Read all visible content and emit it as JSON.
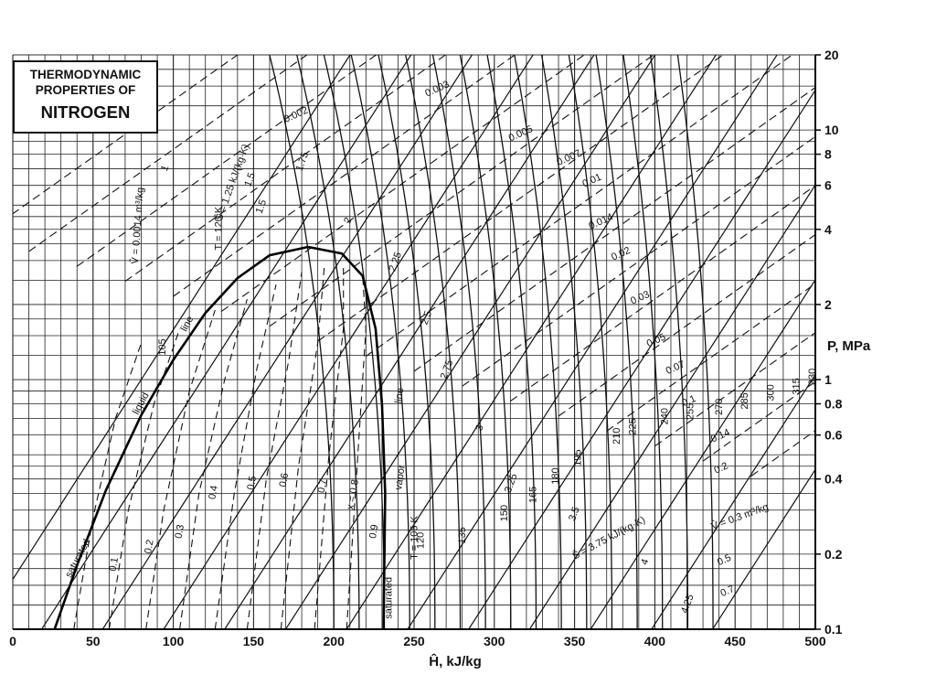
{
  "title_box": {
    "line1": "THERMODYNAMIC",
    "line2": "PROPERTIES OF",
    "line3": "NITROGEN"
  },
  "chart_data": {
    "type": "line",
    "title": "THERMODYNAMIC PROPERTIES OF NITROGEN",
    "xlabel": "Ĥ, kJ/kg",
    "ylabel": "P, MPa",
    "xlim": [
      0,
      500
    ],
    "ylim": [
      0.1,
      20
    ],
    "yscale": "log",
    "grid": true,
    "x_ticks": [
      0,
      50,
      100,
      150,
      200,
      250,
      300,
      350,
      400,
      450,
      500
    ],
    "y_ticks": [
      0.1,
      0.2,
      0.4,
      0.6,
      0.8,
      1,
      2,
      4,
      6,
      8,
      10,
      20
    ],
    "y_tick_labels": [
      "0.1",
      "0.2",
      "0.4",
      "0.6",
      "0.8",
      "1",
      "2",
      "4",
      "6",
      "8",
      "10",
      "20"
    ],
    "dome": {
      "critical_point": [
        184,
        3.4
      ],
      "liquid_curve": [
        [
          26,
          0.1
        ],
        [
          40,
          0.18
        ],
        [
          58,
          0.36
        ],
        [
          80,
          0.72
        ],
        [
          100,
          1.2
        ],
        [
          120,
          1.85
        ],
        [
          140,
          2.55
        ],
        [
          160,
          3.15
        ],
        [
          184,
          3.4
        ]
      ],
      "vapor_curve": [
        [
          184,
          3.4
        ],
        [
          205,
          3.2
        ],
        [
          218,
          2.6
        ],
        [
          226,
          1.6
        ],
        [
          230,
          0.8
        ],
        [
          232,
          0.35
        ],
        [
          231,
          0.1
        ]
      ],
      "labels": {
        "saturated_liquid_1": "saturated",
        "saturated_liquid_2": "liquid",
        "saturated_liquid_3": "line",
        "saturated_vapor_1": "saturated",
        "saturated_vapor_2": "vapor",
        "saturated_vapor_3": "line"
      }
    },
    "quality_lines": {
      "values": [
        "0.1",
        "0.2",
        "0.3",
        "0.4",
        "0.5",
        "0.6",
        "0.7",
        "x = 0.8",
        "0.9"
      ],
      "points": [
        [
          [
            38,
            0.1
          ],
          [
            50,
            0.28
          ],
          [
            64,
            0.7
          ],
          [
            80,
            1.4
          ]
        ],
        [
          [
            60,
            0.1
          ],
          [
            72,
            0.3
          ],
          [
            88,
            0.8
          ],
          [
            104,
            1.6
          ]
        ],
        [
          [
            83,
            0.1
          ],
          [
            94,
            0.3
          ],
          [
            110,
            0.9
          ],
          [
            126,
            1.9
          ]
        ],
        [
          [
            104,
            0.1
          ],
          [
            116,
            0.35
          ],
          [
            132,
            1.0
          ],
          [
            146,
            2.1
          ]
        ],
        [
          [
            126,
            0.1
          ],
          [
            138,
            0.35
          ],
          [
            152,
            1.1
          ],
          [
            164,
            2.4
          ]
        ],
        [
          [
            146,
            0.1
          ],
          [
            158,
            0.4
          ],
          [
            172,
            1.2
          ],
          [
            180,
            2.7
          ]
        ],
        [
          [
            167,
            0.1
          ],
          [
            178,
            0.45
          ],
          [
            190,
            1.4
          ],
          [
            194,
            2.8
          ]
        ],
        [
          [
            188,
            0.1
          ],
          [
            197,
            0.5
          ],
          [
            206,
            1.6
          ],
          [
            206,
            2.8
          ]
        ],
        [
          [
            208,
            0.1
          ],
          [
            215,
            0.5
          ],
          [
            220,
            1.6
          ],
          [
            218,
            2.6
          ]
        ]
      ]
    },
    "isotherms": {
      "unit": "K",
      "labels": [
        "T = 105 K",
        "T = 120 K",
        "105",
        "120",
        "135",
        "150",
        "165",
        "180",
        "195",
        "210",
        "225",
        "240",
        "255",
        "270",
        "285",
        "300",
        "315",
        "330"
      ],
      "values_K": [
        105,
        120,
        105,
        120,
        135,
        150,
        165,
        180,
        195,
        210,
        225,
        240,
        255,
        270,
        285,
        300,
        315,
        330
      ]
    },
    "isentropes": {
      "unit": "kJ/(kg·K)",
      "labels": [
        "Ŝ = 1.25 kJ/(kg·K)",
        "1.5",
        "1.75",
        "2",
        "2.25",
        "2.5",
        "2.75",
        "3",
        "3.25",
        "3.5",
        "Ŝ = 3.75 kJ/(kg·K)",
        "4",
        "4.25"
      ]
    },
    "isochores": {
      "unit": "m³/kg",
      "labels": [
        "V̂ = 0.0014 m³/kg",
        "0.002",
        "0.003",
        "0.005",
        "0.007",
        "0.01",
        "0.014",
        "0.02",
        "0.03",
        "0.05",
        "0.07",
        "0.1",
        "0.14",
        "0.2",
        "V̂ = 0.3 m³/kg",
        "0.5",
        "0.7"
      ]
    },
    "x_tick_labels": [
      "0",
      "50",
      "100",
      "150",
      "200",
      "250",
      "300",
      "350",
      "400",
      "450",
      "500"
    ],
    "misc_labels": [
      "1",
      "1.5"
    ]
  }
}
